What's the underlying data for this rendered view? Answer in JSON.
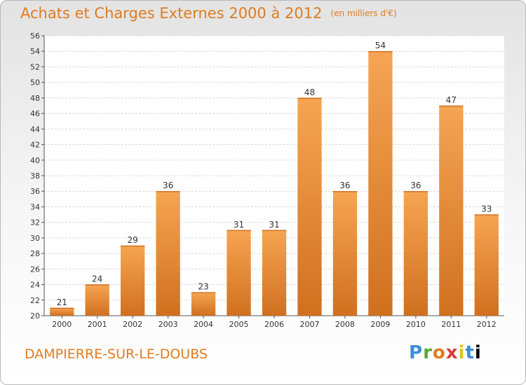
{
  "header": {
    "title": "Achats et Charges Externes 2000 à 2012",
    "unit": "(en milliers d'€)"
  },
  "footer": {
    "commune": "DAMPIERRE-SUR-LE-DOUBS",
    "logo": [
      "P",
      "r",
      "o",
      "x",
      "i",
      "t",
      "i"
    ]
  },
  "colors": {
    "bar_light": "#f6a553",
    "bar_dark": "#d0701f",
    "accent": "#e07b1f"
  },
  "chart_data": {
    "type": "bar",
    "title": "Achats et Charges Externes 2000 à 2012",
    "subtitle": "(en milliers d'€)",
    "xlabel": "",
    "ylabel": "",
    "categories": [
      "2000",
      "2001",
      "2002",
      "2003",
      "2004",
      "2005",
      "2006",
      "2007",
      "2008",
      "2009",
      "2010",
      "2011",
      "2012"
    ],
    "values": [
      21,
      24,
      29,
      36,
      23,
      31,
      31,
      48,
      36,
      54,
      36,
      47,
      33
    ],
    "ylim": [
      20,
      56
    ],
    "yticks": [
      20,
      22,
      24,
      26,
      28,
      30,
      32,
      34,
      36,
      38,
      40,
      42,
      44,
      46,
      48,
      50,
      52,
      54,
      56
    ],
    "grid": true
  }
}
